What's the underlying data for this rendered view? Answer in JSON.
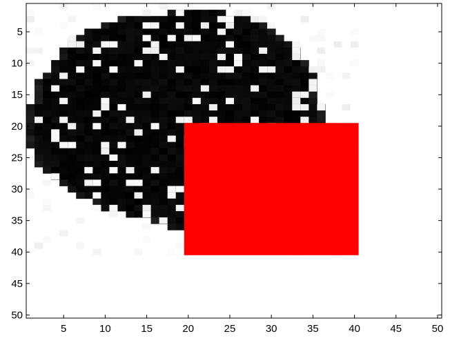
{
  "chart_data": {
    "type": "heatmap",
    "title": "",
    "xlabel": "",
    "ylabel": "",
    "xlim": [
      0.5,
      50.5
    ],
    "ylim": [
      0.5,
      50.5
    ],
    "y_reversed": true,
    "grid": false,
    "colormap": "gray",
    "xticks": [
      5,
      10,
      15,
      20,
      25,
      30,
      35,
      40,
      45,
      50
    ],
    "yticks": [
      5,
      10,
      15,
      20,
      25,
      30,
      35,
      40,
      45,
      50
    ],
    "xtick_labels": [
      "5",
      "10",
      "15",
      "20",
      "25",
      "30",
      "35",
      "40",
      "45",
      "50"
    ],
    "ytick_labels": [
      "5",
      "10",
      "15",
      "20",
      "25",
      "30",
      "35",
      "40",
      "45",
      "50"
    ],
    "grid_size": [
      50,
      50
    ],
    "background_value": 1.0,
    "blob": {
      "description_value": 0.0,
      "rows": [
        {
          "y": 2,
          "x_start": 18,
          "x_end": 24
        },
        {
          "y": 3,
          "x_start": 12,
          "x_end": 27
        },
        {
          "y": 4,
          "x_start": 10,
          "x_end": 29
        },
        {
          "y": 5,
          "x_start": 8,
          "x_end": 30
        },
        {
          "y": 6,
          "x_start": 7,
          "x_end": 31
        },
        {
          "y": 7,
          "x_start": 6,
          "x_end": 32
        },
        {
          "y": 8,
          "x_start": 5,
          "x_end": 33
        },
        {
          "y": 9,
          "x_start": 5,
          "x_end": 33
        },
        {
          "y": 10,
          "x_start": 4,
          "x_end": 34
        },
        {
          "y": 11,
          "x_start": 4,
          "x_end": 34
        },
        {
          "y": 12,
          "x_start": 3,
          "x_end": 35
        },
        {
          "y": 13,
          "x_start": 2,
          "x_end": 35
        },
        {
          "y": 14,
          "x_start": 2,
          "x_end": 35
        },
        {
          "y": 15,
          "x_start": 2,
          "x_end": 35
        },
        {
          "y": 16,
          "x_start": 2,
          "x_end": 35
        },
        {
          "y": 17,
          "x_start": 1,
          "x_end": 36
        },
        {
          "y": 18,
          "x_start": 1,
          "x_end": 36
        },
        {
          "y": 19,
          "x_start": 1,
          "x_end": 36
        },
        {
          "y": 20,
          "x_start": 1,
          "x_end": 36
        },
        {
          "y": 21,
          "x_start": 1,
          "x_end": 36
        },
        {
          "y": 22,
          "x_start": 1,
          "x_end": 36
        },
        {
          "y": 23,
          "x_start": 1,
          "x_end": 36
        },
        {
          "y": 24,
          "x_start": 2,
          "x_end": 36
        },
        {
          "y": 25,
          "x_start": 2,
          "x_end": 36
        },
        {
          "y": 26,
          "x_start": 2,
          "x_end": 36
        },
        {
          "y": 27,
          "x_start": 3,
          "x_end": 36
        },
        {
          "y": 28,
          "x_start": 4,
          "x_end": 35
        },
        {
          "y": 29,
          "x_start": 5,
          "x_end": 35
        },
        {
          "y": 30,
          "x_start": 6,
          "x_end": 34
        },
        {
          "y": 31,
          "x_start": 7,
          "x_end": 33
        },
        {
          "y": 32,
          "x_start": 9,
          "x_end": 32
        },
        {
          "y": 33,
          "x_start": 10,
          "x_end": 31
        },
        {
          "y": 34,
          "x_start": 13,
          "x_end": 29
        },
        {
          "y": 35,
          "x_start": 16,
          "x_end": 27
        },
        {
          "y": 36,
          "x_start": 18,
          "x_end": 24
        }
      ]
    },
    "overlay_rect": {
      "x_range": [
        19.5,
        40.5
      ],
      "y_range": [
        19.5,
        40.5
      ],
      "color": "#ff0000"
    }
  }
}
